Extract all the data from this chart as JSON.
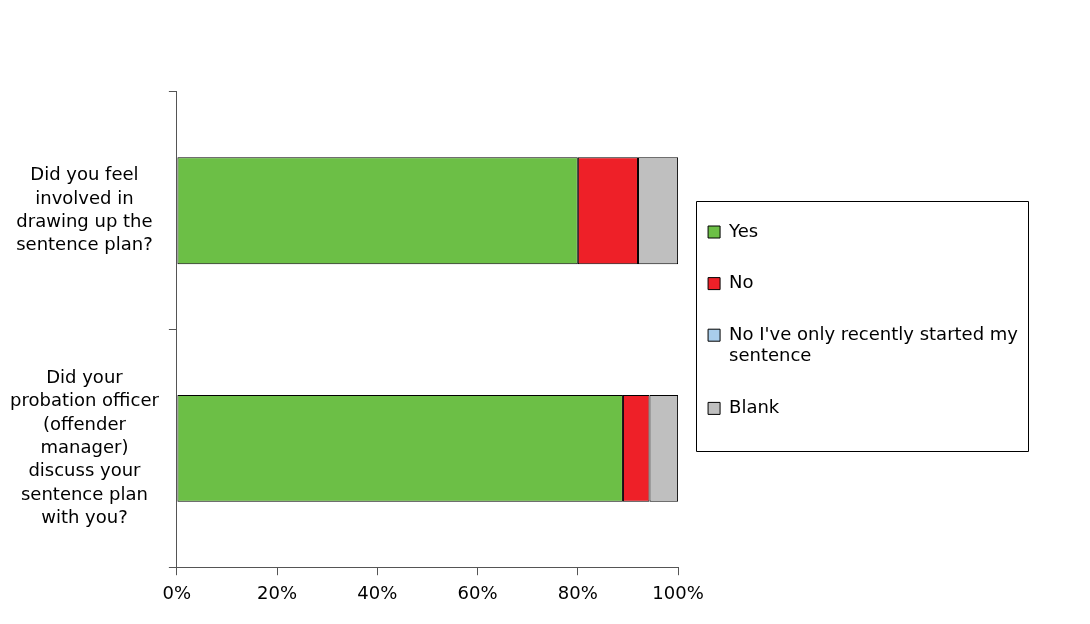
{
  "chart_data": {
    "type": "bar",
    "orientation": "horizontal",
    "stacked": true,
    "categories": [
      "Did you feel involved in drawing up the sentence plan?",
      "Did your probation officer (offender manager) discuss your sentence plan with you?"
    ],
    "series": [
      {
        "name": "Yes",
        "color": "#6cbf46",
        "values": [
          80,
          89
        ]
      },
      {
        "name": "No",
        "color": "#ee2028",
        "values": [
          12,
          5.3
        ]
      },
      {
        "name": "No I've only recently started my sentence",
        "color": "#a9cdeb",
        "values": [
          0,
          0
        ]
      },
      {
        "name": "Blank",
        "color": "#bfbfbf",
        "values": [
          8,
          5.7
        ]
      }
    ],
    "xlim": [
      0,
      100
    ],
    "xticks": [
      {
        "value": 0,
        "label": "0%"
      },
      {
        "value": 20,
        "label": "20%"
      },
      {
        "value": 40,
        "label": "40%"
      },
      {
        "value": 60,
        "label": "60%"
      },
      {
        "value": 80,
        "label": "80%"
      },
      {
        "value": 100,
        "label": "100%"
      }
    ],
    "legend": "right",
    "grid": false
  }
}
